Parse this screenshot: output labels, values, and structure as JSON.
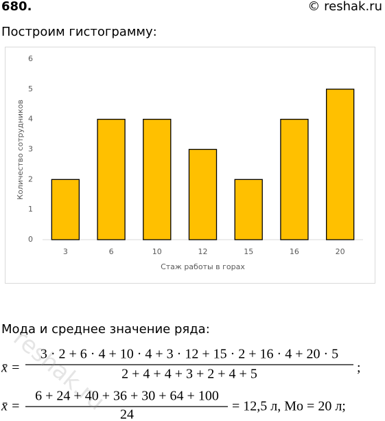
{
  "header": {
    "number": "680.",
    "source": "© reshak.ru"
  },
  "intro": "Построим гистограмму:",
  "chart_data": {
    "type": "bar",
    "x_label": "Стаж работы в горах",
    "y_label": "Количество сотрудников",
    "categories": [
      "3",
      "6",
      "10",
      "12",
      "15",
      "16",
      "20"
    ],
    "values": [
      2,
      4,
      4,
      3,
      2,
      4,
      5
    ],
    "color": "#ffc000",
    "ylim": [
      0,
      6
    ],
    "yticks": [
      0,
      1,
      2,
      3,
      4,
      5,
      6
    ],
    "grid": false
  },
  "section": "Мода и среднее значение ряда:",
  "formula1": {
    "lhs": "x̄ =",
    "numerator": "3 · 2 + 6 · 4 + 10 · 4 + 3 · 12 + 15 · 2 + 16 · 4 + 20 · 5",
    "denominator": "2 + 4 + 4 + 3 + 2 + 4 + 5",
    "tail": ";"
  },
  "formula2": {
    "lhs": "x̄ =",
    "numerator": "6 + 24 + 40 + 36 + 30 + 64 + 100",
    "denominator": "24",
    "tail": "= 12,5 л,  Mo = 20 л;"
  },
  "watermark": "reshak.ru"
}
